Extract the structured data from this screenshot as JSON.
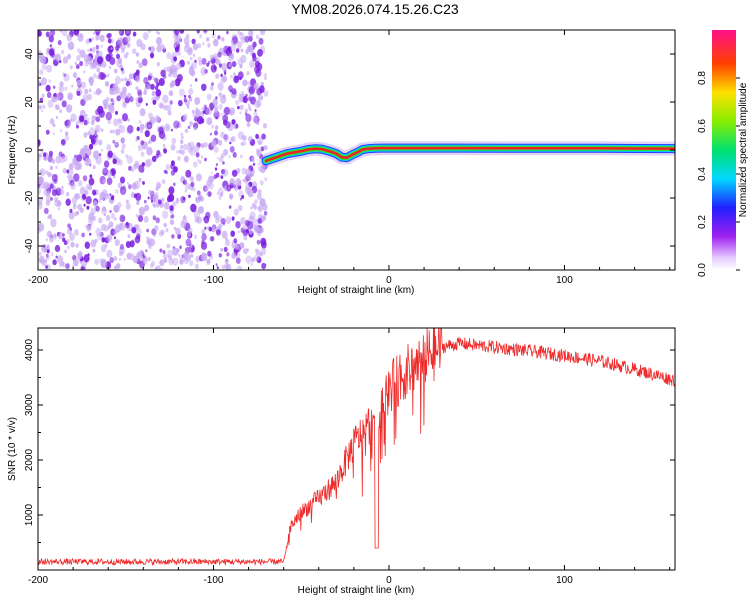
{
  "title": "YM08.2026.074.15.26.C23",
  "colors": {
    "scatter": "#7a1ee0",
    "scatter_light": "#c7a8f3",
    "snr_line": "#ee2a2a",
    "ridge_outer": "#00c8ff",
    "ridge_mid": "#33dd33",
    "ridge_core": "#ee2222",
    "frame": "#000000"
  },
  "chart_data": [
    {
      "type": "heatmap",
      "title": "YM08.2026.074.15.26.C23",
      "xlabel": "Height of straight line (km)",
      "ylabel": "Frequency (Hz)",
      "xlim": [
        -200,
        163
      ],
      "ylim": [
        -50,
        50
      ],
      "xticks": [
        -200,
        -100,
        0,
        100
      ],
      "xtick_labels": [
        "-200",
        "-100",
        "0",
        "100"
      ],
      "yticks": [
        -40,
        -20,
        0,
        20,
        40
      ],
      "ytick_labels": [
        "-40",
        "-20",
        "0",
        "20",
        "40"
      ],
      "noise_region_x": [
        -200,
        -70
      ],
      "ridge": {
        "x": [
          -70,
          -66,
          -62,
          -58,
          -54,
          -50,
          -46,
          -42,
          -38,
          -34,
          -30,
          -27,
          -24,
          -21,
          -18,
          -15,
          -12,
          -8,
          -4,
          0,
          40,
          80,
          120,
          163
        ],
        "y": [
          -4.5,
          -3.5,
          -2.5,
          -1.5,
          -1.0,
          -0.5,
          0.2,
          0.5,
          0.3,
          -0.5,
          -1.5,
          -3.0,
          -3.2,
          -2.0,
          -1.0,
          0.2,
          0.5,
          0.7,
          0.8,
          0.8,
          0.8,
          0.7,
          0.7,
          0.6
        ]
      },
      "colorbar": {
        "label": "Normalized spectral amplitude",
        "range": [
          0,
          1
        ],
        "ticks": [
          0.0,
          0.2,
          0.4,
          0.6,
          0.8
        ],
        "tick_labels": [
          "0.0",
          "0.2",
          "0.4",
          "0.6",
          "0.8"
        ]
      }
    },
    {
      "type": "line",
      "xlabel": "Height of straight line (km)",
      "ylabel": "SNR (10 * v/v)",
      "xlim": [
        -200,
        163
      ],
      "ylim": [
        0,
        4400
      ],
      "xticks": [
        -200,
        -100,
        0,
        100
      ],
      "xtick_labels": [
        "-200",
        "-100",
        "0",
        "100"
      ],
      "yticks": [
        1000,
        2000,
        3000,
        4000
      ],
      "ytick_labels": [
        "1000",
        "2000",
        "3000",
        "4000"
      ],
      "series": [
        {
          "name": "SNR",
          "x": [
            -200,
            -60,
            -56,
            -50,
            -40,
            -30,
            -20,
            -10,
            0,
            10,
            20,
            30,
            40,
            60,
            80,
            100,
            120,
            140,
            163
          ],
          "y": [
            150,
            150,
            800,
            1050,
            1300,
            1600,
            2300,
            2700,
            3300,
            3600,
            3850,
            4050,
            4120,
            4050,
            3980,
            3900,
            3800,
            3650,
            3450
          ]
        }
      ]
    }
  ]
}
